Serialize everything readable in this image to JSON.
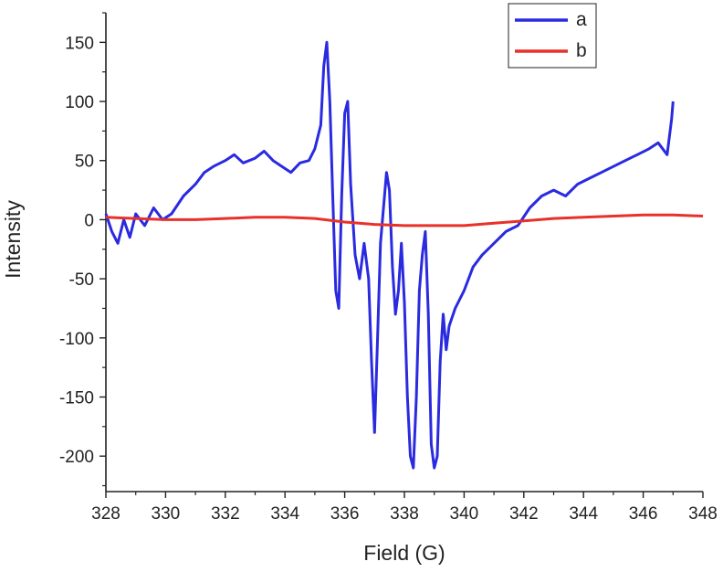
{
  "chart_data": {
    "type": "line",
    "title": "",
    "xlabel": "Field (G)",
    "ylabel": "Intensity",
    "xlim": [
      328,
      348
    ],
    "ylim": [
      -230,
      175
    ],
    "xticks": [
      328,
      330,
      332,
      334,
      336,
      338,
      340,
      342,
      344,
      346,
      348
    ],
    "yticks": [
      150,
      100,
      50,
      0,
      -50,
      -100,
      -150,
      -200
    ],
    "grid": false,
    "legend_position": "top-right",
    "series": [
      {
        "name": "a",
        "color": "#2a2ae0",
        "x": [
          328.0,
          328.2,
          328.4,
          328.6,
          328.8,
          329.0,
          329.3,
          329.6,
          329.9,
          330.2,
          330.6,
          331.0,
          331.3,
          331.6,
          332.0,
          332.3,
          332.6,
          333.0,
          333.3,
          333.6,
          333.9,
          334.2,
          334.5,
          334.8,
          335.0,
          335.2,
          335.3,
          335.4,
          335.5,
          335.6,
          335.7,
          335.8,
          335.9,
          336.0,
          336.1,
          336.2,
          336.35,
          336.5,
          336.65,
          336.8,
          336.9,
          337.0,
          337.1,
          337.2,
          337.3,
          337.4,
          337.5,
          337.6,
          337.7,
          337.8,
          337.9,
          338.0,
          338.1,
          338.2,
          338.3,
          338.4,
          338.5,
          338.6,
          338.7,
          338.8,
          338.9,
          339.0,
          339.1,
          339.2,
          339.3,
          339.4,
          339.5,
          339.7,
          340.0,
          340.3,
          340.6,
          341.0,
          341.4,
          341.8,
          342.2,
          342.6,
          343.0,
          343.4,
          343.8,
          344.2,
          344.6,
          345.0,
          345.4,
          345.8,
          346.2,
          346.5,
          346.8,
          346.95,
          347.0
        ],
        "y": [
          5,
          -10,
          -20,
          0,
          -15,
          5,
          -5,
          10,
          0,
          5,
          20,
          30,
          40,
          45,
          50,
          55,
          48,
          52,
          58,
          50,
          45,
          40,
          48,
          50,
          60,
          80,
          130,
          150,
          100,
          20,
          -60,
          -75,
          20,
          90,
          100,
          30,
          -30,
          -50,
          -20,
          -50,
          -120,
          -180,
          -100,
          -20,
          10,
          40,
          25,
          -40,
          -80,
          -60,
          -20,
          -70,
          -150,
          -200,
          -210,
          -150,
          -60,
          -30,
          -10,
          -80,
          -190,
          -210,
          -200,
          -120,
          -80,
          -110,
          -90,
          -75,
          -60,
          -40,
          -30,
          -20,
          -10,
          -5,
          10,
          20,
          25,
          20,
          30,
          35,
          40,
          45,
          50,
          55,
          60,
          65,
          55,
          85,
          100
        ]
      },
      {
        "name": "b",
        "color": "#e8312a",
        "x": [
          328,
          329,
          330,
          331,
          332,
          333,
          334,
          335,
          336,
          337,
          338,
          339,
          340,
          341,
          342,
          343,
          344,
          345,
          346,
          347,
          348
        ],
        "y": [
          2,
          1,
          0,
          0,
          1,
          2,
          2,
          1,
          -2,
          -4,
          -5,
          -5,
          -5,
          -3,
          -1,
          1,
          2,
          3,
          4,
          4,
          3
        ]
      }
    ]
  }
}
